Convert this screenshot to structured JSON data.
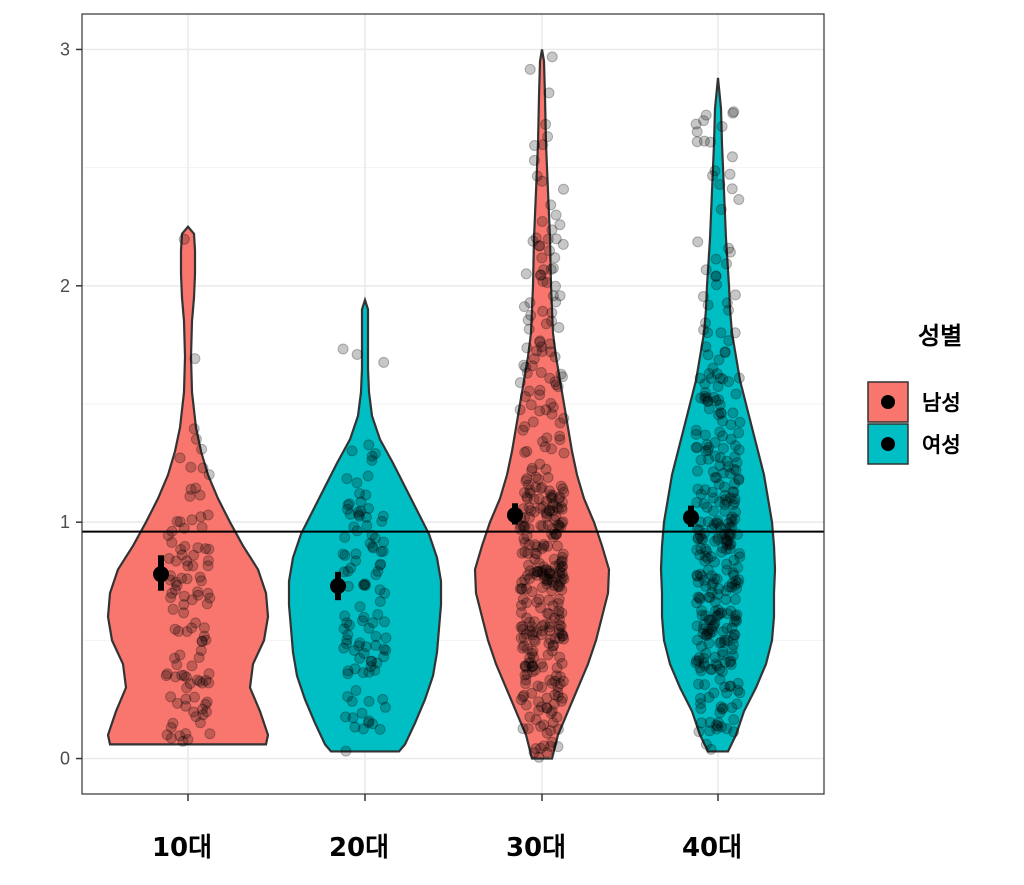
{
  "chart_data": {
    "type": "violin",
    "title": "",
    "xlabel": "",
    "ylabel": "",
    "categories": [
      "10대",
      "20대",
      "30대",
      "40대"
    ],
    "ylim": [
      -0.15,
      3.15
    ],
    "yticks": [
      "0",
      "1",
      "2",
      "3"
    ],
    "reference_line": 0.96,
    "grid": true,
    "legend": {
      "title": "성별",
      "position": "right",
      "items": [
        {
          "label": "남성",
          "color": "#F8766D"
        },
        {
          "label": "여성",
          "color": "#00BFC4"
        }
      ]
    },
    "groups": [
      {
        "category": "10대",
        "fill": "#F8766D",
        "gender": "남성",
        "min": 0.06,
        "max": 2.25,
        "mean": 0.78,
        "ci": [
          0.71,
          0.86
        ]
      },
      {
        "category": "20대",
        "fill": "#00BFC4",
        "gender": "여성",
        "min": 0.03,
        "max": 1.94,
        "mean": 0.73,
        "ci": [
          0.67,
          0.79
        ]
      },
      {
        "category": "30대",
        "fill": "#F8766D",
        "gender": "남성",
        "min": 0.0,
        "max": 3.0,
        "mean": 1.03,
        "ci": [
          0.99,
          1.08
        ]
      },
      {
        "category": "40대",
        "fill": "#00BFC4",
        "gender": "여성",
        "min": 0.03,
        "max": 2.88,
        "mean": 1.02,
        "ci": [
          0.98,
          1.07
        ]
      }
    ]
  }
}
